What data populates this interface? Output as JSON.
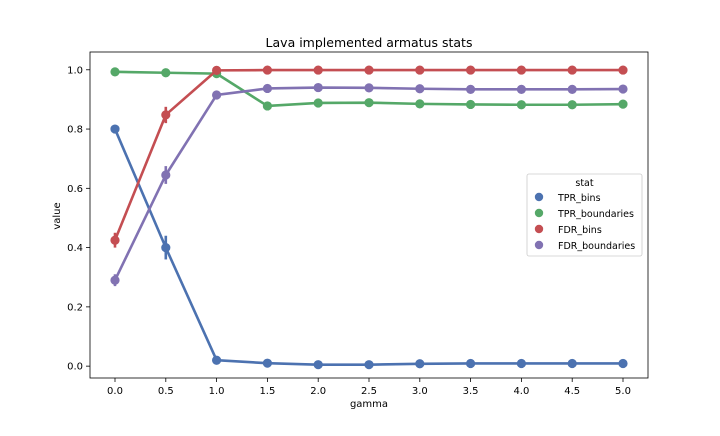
{
  "chart_data": {
    "type": "line",
    "title": "Lava implemented armatus stats",
    "xlabel": "gamma",
    "ylabel": "value",
    "categories": [
      "0.0",
      "0.5",
      "1.0",
      "1.5",
      "2.0",
      "2.5",
      "3.0",
      "3.5",
      "4.0",
      "4.5",
      "5.0"
    ],
    "ylim": [
      -0.04,
      1.06
    ],
    "yticks": [
      "0.0",
      "0.2",
      "0.4",
      "0.6",
      "0.8",
      "1.0"
    ],
    "grid": false,
    "legend": {
      "title": "stat",
      "placement": "center-right"
    },
    "series": [
      {
        "name": "TPR_bins",
        "color": "#4c72b0",
        "values": [
          0.8,
          0.4,
          0.02,
          0.01,
          0.005,
          0.005,
          0.008,
          0.009,
          0.009,
          0.009,
          0.009
        ],
        "err_low": [
          0.79,
          0.36,
          0.015,
          0.008,
          0.004,
          0.004,
          0.006,
          0.007,
          0.007,
          0.007,
          0.007
        ],
        "err_high": [
          0.81,
          0.44,
          0.025,
          0.012,
          0.006,
          0.006,
          0.01,
          0.011,
          0.011,
          0.011,
          0.011
        ]
      },
      {
        "name": "TPR_boundaries",
        "color": "#55a868",
        "values": [
          0.993,
          0.99,
          0.987,
          0.878,
          0.888,
          0.889,
          0.885,
          0.883,
          0.882,
          0.882,
          0.884
        ],
        "err_low": [
          0.99,
          0.987,
          0.984,
          0.874,
          0.884,
          0.885,
          0.881,
          0.879,
          0.878,
          0.878,
          0.88
        ],
        "err_high": [
          0.996,
          0.993,
          0.99,
          0.882,
          0.892,
          0.893,
          0.889,
          0.887,
          0.886,
          0.886,
          0.888
        ]
      },
      {
        "name": "FDR_bins",
        "color": "#c44e52",
        "values": [
          0.425,
          0.848,
          0.998,
          0.999,
          0.999,
          0.999,
          0.999,
          0.999,
          0.999,
          0.999,
          0.999
        ],
        "err_low": [
          0.4,
          0.82,
          0.996,
          0.998,
          0.998,
          0.998,
          0.998,
          0.998,
          0.998,
          0.998,
          0.998
        ],
        "err_high": [
          0.45,
          0.875,
          1.0,
          1.0,
          1.0,
          1.0,
          1.0,
          1.0,
          1.0,
          1.0,
          1.0
        ]
      },
      {
        "name": "FDR_boundaries",
        "color": "#8172b2",
        "values": [
          0.29,
          0.645,
          0.915,
          0.937,
          0.94,
          0.939,
          0.936,
          0.934,
          0.934,
          0.934,
          0.935
        ],
        "err_low": [
          0.27,
          0.615,
          0.91,
          0.933,
          0.936,
          0.935,
          0.932,
          0.93,
          0.93,
          0.93,
          0.931
        ],
        "err_high": [
          0.31,
          0.675,
          0.92,
          0.941,
          0.944,
          0.943,
          0.94,
          0.938,
          0.938,
          0.938,
          0.939
        ]
      }
    ]
  }
}
